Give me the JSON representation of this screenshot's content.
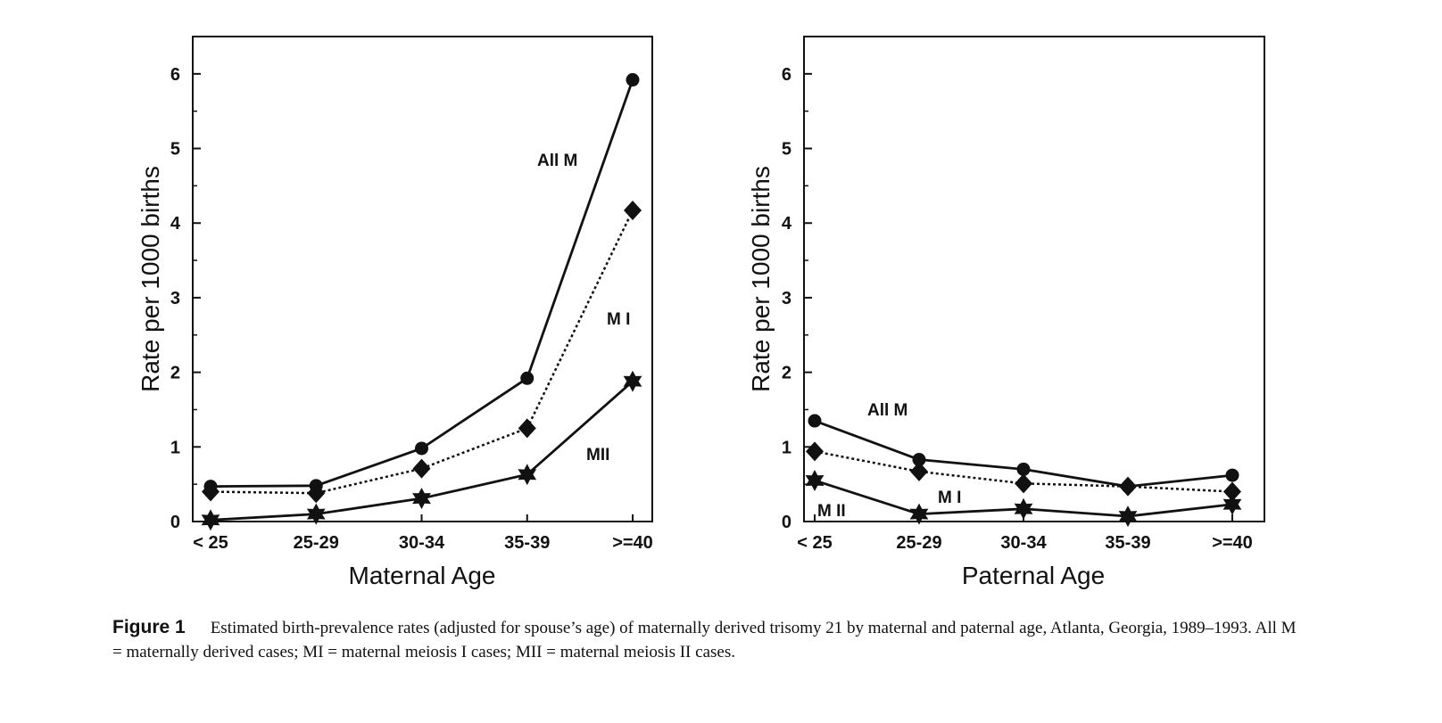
{
  "chart_data": [
    {
      "type": "line",
      "title": "",
      "xlabel": "Maternal Age",
      "ylabel": "Rate per 1000 births",
      "categories": [
        "< 25",
        "25-29",
        "30-34",
        "35-39",
        ">=40"
      ],
      "ylim": [
        0,
        6.5
      ],
      "yticks": [
        "0",
        "1",
        "2",
        "3",
        "4",
        "5",
        "6"
      ],
      "series": [
        {
          "name": "All M",
          "label": "All M",
          "marker": "circle",
          "style": "solid",
          "values": [
            0.47,
            0.48,
            0.98,
            1.92,
            5.92
          ]
        },
        {
          "name": "M I",
          "label": "M I",
          "marker": "diamond",
          "style": "dotted",
          "values": [
            0.4,
            0.38,
            0.71,
            1.25,
            4.17
          ]
        },
        {
          "name": "MII",
          "label": "MII",
          "marker": "star",
          "style": "solid",
          "values": [
            0.02,
            0.1,
            0.31,
            0.63,
            1.88
          ]
        }
      ]
    },
    {
      "type": "line",
      "title": "",
      "xlabel": "Paternal Age",
      "ylabel": "Rate per 1000 births",
      "categories": [
        "< 25",
        "25-29",
        "30-34",
        "35-39",
        ">=40"
      ],
      "ylim": [
        0,
        6.5
      ],
      "yticks": [
        "0",
        "1",
        "2",
        "3",
        "4",
        "5",
        "6"
      ],
      "series": [
        {
          "name": "All M",
          "label": "All M",
          "marker": "circle",
          "style": "solid",
          "values": [
            1.35,
            0.83,
            0.7,
            0.47,
            0.62
          ]
        },
        {
          "name": "M I",
          "label": "M I",
          "marker": "diamond",
          "style": "dotted",
          "values": [
            0.94,
            0.67,
            0.51,
            0.47,
            0.4
          ]
        },
        {
          "name": "M II",
          "label": "M II",
          "marker": "star",
          "style": "solid",
          "values": [
            0.55,
            0.1,
            0.17,
            0.07,
            0.23
          ]
        }
      ]
    }
  ],
  "caption": {
    "label": "Figure 1",
    "text": "Estimated birth-prevalence rates (adjusted for spouse’s age) of maternally derived trisomy 21 by maternal and paternal age, Atlanta, Georgia, 1989–1993. All M = maternally derived cases; MI = maternal meiosis I cases; MII = maternal meiosis II cases."
  }
}
